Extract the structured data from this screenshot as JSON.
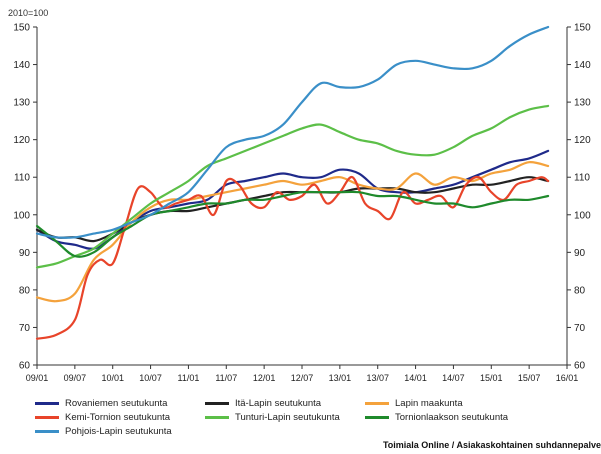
{
  "chart_data": {
    "type": "line",
    "unit_label": "2010=100",
    "ylim": [
      60,
      150
    ],
    "yticks": [
      60,
      70,
      80,
      90,
      100,
      110,
      120,
      130,
      140,
      150
    ],
    "xticks": [
      "09/01",
      "09/07",
      "10/01",
      "10/07",
      "11/01",
      "11/07",
      "12/01",
      "12/07",
      "13/01",
      "13/07",
      "14/01",
      "14/07",
      "15/01",
      "15/07",
      "16/01"
    ],
    "x_range_months": [
      0,
      84
    ],
    "series": [
      {
        "name": "Rovaniemen seutukunta",
        "color": "#1f2a8a",
        "points": [
          [
            0,
            96
          ],
          [
            3,
            93
          ],
          [
            6,
            92
          ],
          [
            9,
            91
          ],
          [
            12,
            94
          ],
          [
            15,
            98
          ],
          [
            18,
            101
          ],
          [
            21,
            102
          ],
          [
            24,
            103
          ],
          [
            27,
            104
          ],
          [
            30,
            108
          ],
          [
            33,
            109
          ],
          [
            36,
            110
          ],
          [
            39,
            111
          ],
          [
            42,
            110
          ],
          [
            45,
            110
          ],
          [
            48,
            112
          ],
          [
            51,
            111
          ],
          [
            54,
            107
          ],
          [
            57,
            106
          ],
          [
            60,
            106
          ],
          [
            63,
            107
          ],
          [
            66,
            108
          ],
          [
            69,
            110
          ],
          [
            72,
            112
          ],
          [
            75,
            114
          ],
          [
            78,
            115
          ],
          [
            81,
            117
          ]
        ]
      },
      {
        "name": "Itä-Lapin seutukunta",
        "color": "#222222",
        "points": [
          [
            0,
            96
          ],
          [
            3,
            94
          ],
          [
            6,
            94
          ],
          [
            9,
            93
          ],
          [
            12,
            95
          ],
          [
            15,
            98
          ],
          [
            18,
            100
          ],
          [
            21,
            101
          ],
          [
            24,
            101
          ],
          [
            27,
            102
          ],
          [
            30,
            103
          ],
          [
            33,
            104
          ],
          [
            36,
            105
          ],
          [
            39,
            106
          ],
          [
            42,
            106
          ],
          [
            45,
            106
          ],
          [
            48,
            106
          ],
          [
            51,
            107
          ],
          [
            54,
            107
          ],
          [
            57,
            107
          ],
          [
            60,
            106
          ],
          [
            63,
            106
          ],
          [
            66,
            107
          ],
          [
            69,
            108
          ],
          [
            72,
            108
          ],
          [
            75,
            109
          ],
          [
            78,
            110
          ],
          [
            81,
            109
          ]
        ]
      },
      {
        "name": "Lapin maakunta",
        "color": "#f4a23c",
        "points": [
          [
            0,
            78
          ],
          [
            3,
            77
          ],
          [
            6,
            79
          ],
          [
            9,
            88
          ],
          [
            12,
            92
          ],
          [
            15,
            98
          ],
          [
            18,
            102
          ],
          [
            21,
            104
          ],
          [
            24,
            104
          ],
          [
            27,
            105
          ],
          [
            30,
            106
          ],
          [
            33,
            107
          ],
          [
            36,
            108
          ],
          [
            39,
            109
          ],
          [
            42,
            108
          ],
          [
            45,
            109
          ],
          [
            48,
            110
          ],
          [
            51,
            108
          ],
          [
            54,
            107
          ],
          [
            57,
            107
          ],
          [
            60,
            111
          ],
          [
            63,
            108
          ],
          [
            66,
            110
          ],
          [
            69,
            109
          ],
          [
            72,
            111
          ],
          [
            75,
            112
          ],
          [
            78,
            114
          ],
          [
            81,
            113
          ]
        ]
      },
      {
        "name": "Kemi-Tornion seutukunta",
        "color": "#e8442a",
        "points": [
          [
            0,
            67
          ],
          [
            3,
            68
          ],
          [
            6,
            72
          ],
          [
            8,
            84
          ],
          [
            10,
            88
          ],
          [
            12,
            87
          ],
          [
            14,
            97
          ],
          [
            16,
            107
          ],
          [
            18,
            106
          ],
          [
            20,
            102
          ],
          [
            22,
            103
          ],
          [
            24,
            104
          ],
          [
            26,
            105
          ],
          [
            28,
            100
          ],
          [
            30,
            109
          ],
          [
            32,
            108
          ],
          [
            34,
            103
          ],
          [
            36,
            102
          ],
          [
            38,
            106
          ],
          [
            40,
            104
          ],
          [
            42,
            105
          ],
          [
            44,
            108
          ],
          [
            46,
            103
          ],
          [
            48,
            106
          ],
          [
            50,
            110
          ],
          [
            52,
            103
          ],
          [
            54,
            101
          ],
          [
            56,
            99
          ],
          [
            58,
            106
          ],
          [
            60,
            103
          ],
          [
            62,
            104
          ],
          [
            64,
            105
          ],
          [
            66,
            102
          ],
          [
            68,
            108
          ],
          [
            70,
            110
          ],
          [
            72,
            106
          ],
          [
            74,
            104
          ],
          [
            76,
            108
          ],
          [
            78,
            109
          ],
          [
            80,
            110
          ],
          [
            81,
            109
          ]
        ]
      },
      {
        "name": "Tunturi-Lapin seutukunta",
        "color": "#5cbf48",
        "points": [
          [
            0,
            86
          ],
          [
            3,
            87
          ],
          [
            6,
            89
          ],
          [
            9,
            91
          ],
          [
            12,
            95
          ],
          [
            15,
            99
          ],
          [
            18,
            103
          ],
          [
            21,
            106
          ],
          [
            24,
            109
          ],
          [
            27,
            113
          ],
          [
            30,
            115
          ],
          [
            33,
            117
          ],
          [
            36,
            119
          ],
          [
            39,
            121
          ],
          [
            42,
            123
          ],
          [
            45,
            124
          ],
          [
            48,
            122
          ],
          [
            51,
            120
          ],
          [
            54,
            119
          ],
          [
            57,
            117
          ],
          [
            60,
            116
          ],
          [
            63,
            116
          ],
          [
            66,
            118
          ],
          [
            69,
            121
          ],
          [
            72,
            123
          ],
          [
            75,
            126
          ],
          [
            78,
            128
          ],
          [
            81,
            129
          ]
        ]
      },
      {
        "name": "Tornionlaakson seutukunta",
        "color": "#1f8a2c",
        "points": [
          [
            0,
            97
          ],
          [
            3,
            93
          ],
          [
            6,
            89
          ],
          [
            9,
            90
          ],
          [
            12,
            94
          ],
          [
            15,
            97
          ],
          [
            18,
            100
          ],
          [
            21,
            101
          ],
          [
            24,
            102
          ],
          [
            27,
            103
          ],
          [
            30,
            103
          ],
          [
            33,
            104
          ],
          [
            36,
            104
          ],
          [
            39,
            105
          ],
          [
            42,
            106
          ],
          [
            45,
            106
          ],
          [
            48,
            106
          ],
          [
            51,
            106
          ],
          [
            54,
            105
          ],
          [
            57,
            105
          ],
          [
            60,
            104
          ],
          [
            63,
            103
          ],
          [
            66,
            103
          ],
          [
            69,
            102
          ],
          [
            72,
            103
          ],
          [
            75,
            104
          ],
          [
            78,
            104
          ],
          [
            81,
            105
          ]
        ]
      },
      {
        "name": "Pohjois-Lapin seutukunta",
        "color": "#3a8fc8",
        "points": [
          [
            0,
            95
          ],
          [
            3,
            94
          ],
          [
            6,
            94
          ],
          [
            9,
            95
          ],
          [
            12,
            96
          ],
          [
            15,
            98
          ],
          [
            18,
            100
          ],
          [
            21,
            103
          ],
          [
            24,
            106
          ],
          [
            27,
            112
          ],
          [
            30,
            118
          ],
          [
            33,
            120
          ],
          [
            36,
            121
          ],
          [
            39,
            124
          ],
          [
            42,
            130
          ],
          [
            45,
            135
          ],
          [
            48,
            134
          ],
          [
            51,
            134
          ],
          [
            54,
            136
          ],
          [
            57,
            140
          ],
          [
            60,
            141
          ],
          [
            63,
            140
          ],
          [
            66,
            139
          ],
          [
            69,
            139
          ],
          [
            72,
            141
          ],
          [
            75,
            145
          ],
          [
            78,
            148
          ],
          [
            81,
            150
          ]
        ]
      }
    ]
  },
  "legend": [
    {
      "label": "Rovaniemen seutukunta",
      "color": "#1f2a8a"
    },
    {
      "label": "Itä-Lapin seutukunta",
      "color": "#222222"
    },
    {
      "label": "Lapin maakunta",
      "color": "#f4a23c"
    },
    {
      "label": "Kemi-Tornion seutukunta",
      "color": "#e8442a"
    },
    {
      "label": "Tunturi-Lapin seutukunta",
      "color": "#5cbf48"
    },
    {
      "label": "Tornionlaakson seutukunta",
      "color": "#1f8a2c"
    },
    {
      "label": "Pohjois-Lapin seutukunta",
      "color": "#3a8fc8"
    }
  ],
  "source": "Toimiala Online / Asiakaskohtainen suhdannepalve"
}
